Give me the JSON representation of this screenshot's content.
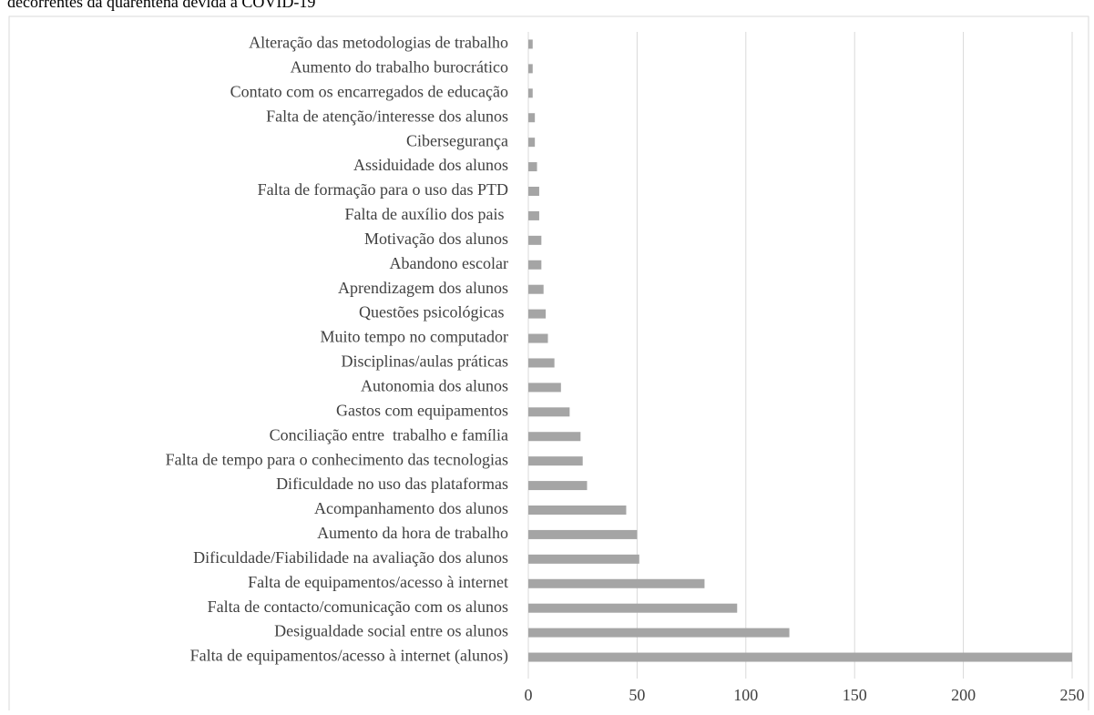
{
  "chart_data": {
    "type": "barh",
    "title": "decorrentes da quarentena devida à COVID-19",
    "categories": [
      "Alteração das metodologias de trabalho",
      "Aumento do trabalho burocrático",
      "Contato com os encarregados de educação",
      "Falta de atenção/interesse dos alunos",
      "Cibersegurança",
      "Assiduidade dos alunos",
      "Falta de formação para o uso das PTD",
      "Falta de auxílio dos pais ",
      "Motivação dos alunos",
      "Abandono escolar",
      "Aprendizagem dos alunos",
      "Questões psicológicas ",
      "Muito tempo no computador",
      "Disciplinas/aulas práticas",
      "Autonomia dos alunos",
      "Gastos com equipamentos",
      "Conciliação entre  trabalho e família",
      "Falta de tempo para o conhecimento das tecnologias",
      "Dificuldade no uso das plataformas",
      "Acompanhamento dos alunos",
      "Aumento da hora de trabalho",
      "Dificuldade/Fiabilidade na avaliação dos alunos",
      "Falta de equipamentos/acesso à internet",
      "Falta de contacto/comunicação com os alunos",
      "Desigualdade social entre os alunos",
      "Falta de equipamentos/acesso à internet (alunos)"
    ],
    "values": [
      2,
      2,
      2,
      3,
      3,
      4,
      5,
      5,
      6,
      6,
      7,
      8,
      9,
      12,
      15,
      19,
      24,
      25,
      27,
      45,
      50,
      51,
      81,
      96,
      120,
      250
    ],
    "color": "#a5a5a5",
    "xlim": [
      0,
      250
    ],
    "xticks": [
      0,
      50,
      100,
      150,
      200,
      250
    ],
    "grid": true
  }
}
